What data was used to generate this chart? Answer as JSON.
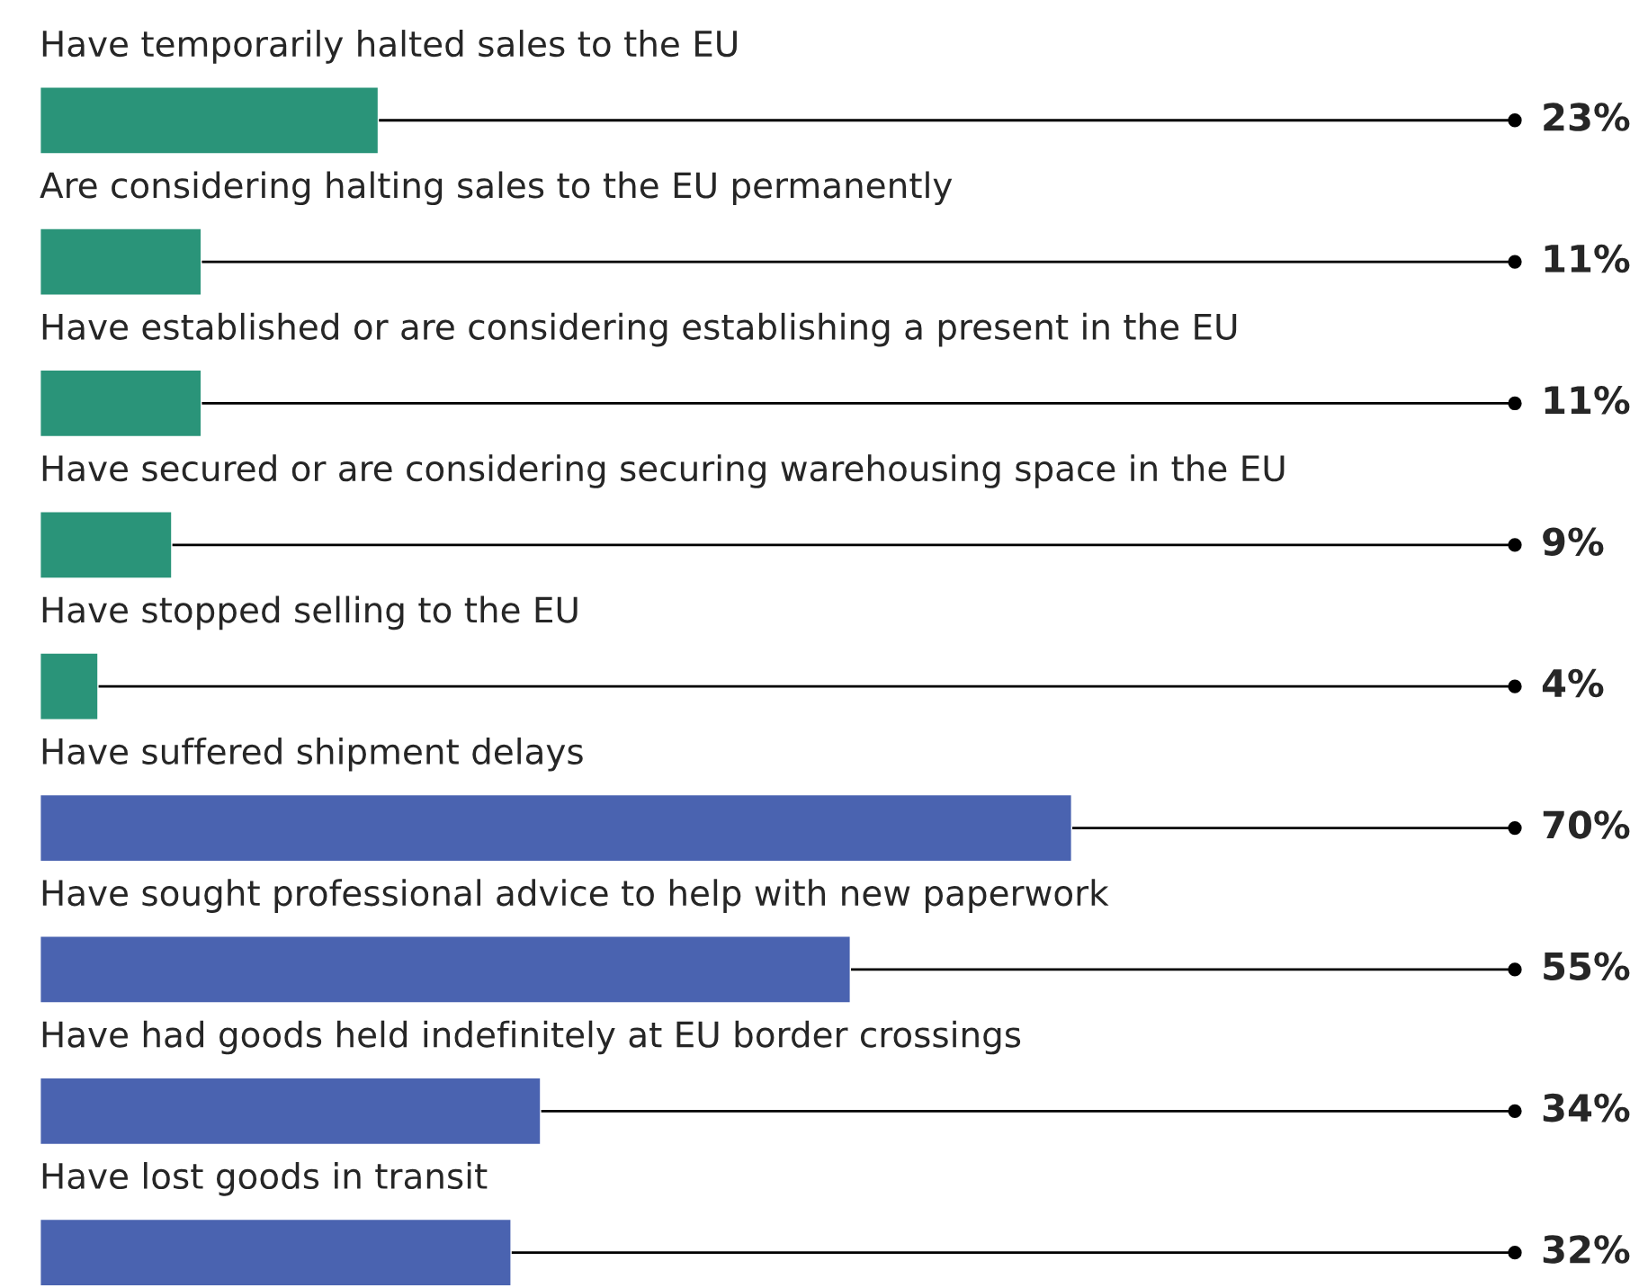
{
  "chart_data": {
    "type": "bar",
    "orientation": "horizontal",
    "categories": [
      "Have temporarily halted sales to the EU",
      "Are considering halting sales to the EU permanently",
      "Have established or are considering establishing a present in the EU",
      "Have secured or are considering securing warehousing space in the EU",
      "Have stopped selling to the EU",
      "Have suffered shipment delays",
      "Have sought professional advice to help with new paperwork",
      "Have had goods held indefinitely at EU border crossings",
      "Have lost goods in transit"
    ],
    "values": [
      23,
      11,
      11,
      9,
      4,
      70,
      55,
      34,
      32
    ],
    "colors": [
      "#2a9479",
      "#2a9479",
      "#2a9479",
      "#2a9479",
      "#2a9479",
      "#4a63b0",
      "#4a63b0",
      "#4a63b0",
      "#4a63b0"
    ],
    "value_labels": [
      "23%",
      "11%",
      "11%",
      "9%",
      "4%",
      "70%",
      "55%",
      "34%",
      "32%"
    ],
    "xlim": [
      0,
      100
    ]
  }
}
